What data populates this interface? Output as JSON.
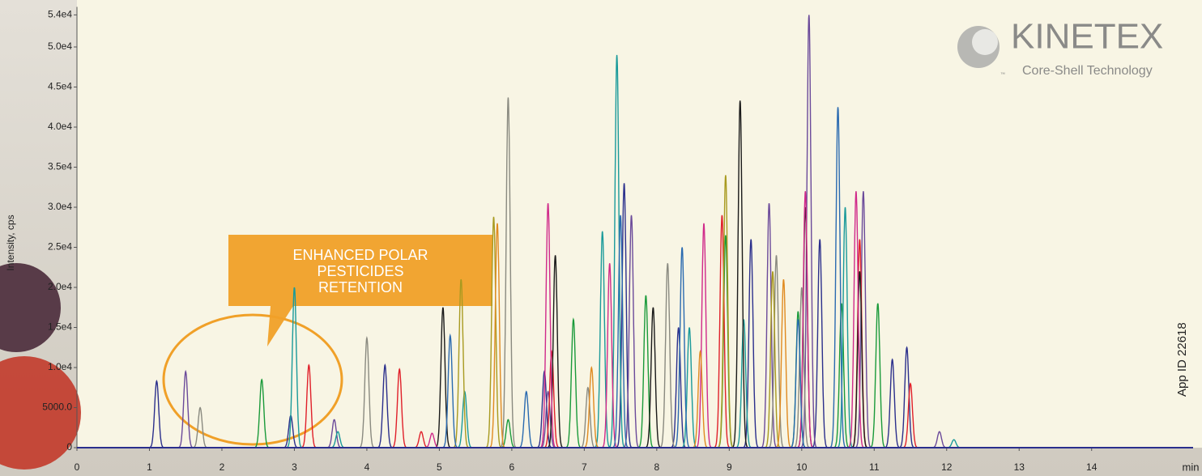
{
  "chart_data": {
    "type": "chromatogram",
    "y_label": "Intensity, cps",
    "x_label": "min",
    "annotation": [
      "ENHANCED POLAR",
      "PESTICIDES",
      "RETENTION"
    ],
    "logo": {
      "name": "KINETEX",
      "tm": "™",
      "tagline": "Core-Shell Technology"
    },
    "app_id": "App ID 22618",
    "xlim": [
      0,
      15.4
    ],
    "ylim": [
      0,
      55000
    ],
    "xticks": [
      0,
      1,
      2,
      3,
      4,
      5,
      6,
      7,
      8,
      9,
      10,
      11,
      12,
      13,
      14
    ],
    "yticks": [
      0,
      {
        "value": 5000,
        "label": "5000.0"
      },
      {
        "value": 10000,
        "label": "1.0e4"
      },
      {
        "value": 15000,
        "label": "1.5e4"
      },
      {
        "value": 20000,
        "label": "2.0e4"
      },
      {
        "value": 25000,
        "label": "2.5e4"
      },
      {
        "value": 30000,
        "label": "3.0e4"
      },
      {
        "value": 35000,
        "label": "3.5e4"
      },
      {
        "value": 40000,
        "label": "4.0e4"
      },
      {
        "value": 45000,
        "label": "4.5e4"
      },
      {
        "value": 50000,
        "label": "5.0e4"
      },
      {
        "value": 54000,
        "label": "5.4e4"
      }
    ],
    "series": [
      {
        "color": "#2b2f8c",
        "x": [
          1.1,
          2.95,
          4.25,
          6.45,
          7.55,
          8.3,
          9.3,
          10.25,
          11.25,
          11.45
        ],
        "values": [
          8300,
          4000,
          10300,
          9500,
          33000,
          15000,
          26000,
          26000,
          11000,
          12500
        ]
      },
      {
        "color": "#6b4a9a",
        "x": [
          1.5,
          3.55,
          6.5,
          7.65,
          9.55,
          10.1,
          10.85,
          11.9
        ],
        "values": [
          9500,
          3500,
          7000,
          29000,
          30500,
          54000,
          32000,
          2000
        ]
      },
      {
        "color": "#8a8a80",
        "x": [
          1.7,
          4.0,
          5.95,
          7.05,
          8.15,
          9.65,
          10.0
        ],
        "values": [
          5000,
          13700,
          43700,
          7500,
          23000,
          24000,
          20000
        ]
      },
      {
        "color": "#1a9a3a",
        "x": [
          2.55,
          5.95,
          6.85,
          7.85,
          8.95,
          9.95,
          10.55,
          11.05
        ],
        "values": [
          8500,
          3500,
          16000,
          19000,
          26500,
          17000,
          18000,
          18000
        ]
      },
      {
        "color": "#1a9a9a",
        "x": [
          3.0,
          3.6,
          5.35,
          7.25,
          7.45,
          8.45,
          9.2,
          10.6,
          12.1
        ],
        "values": [
          20000,
          2000,
          7000,
          27000,
          49000,
          15000,
          16000,
          30000,
          1000
        ]
      },
      {
        "color": "#e0202a",
        "x": [
          3.2,
          4.45,
          4.75,
          6.55,
          8.9,
          10.8,
          11.5
        ],
        "values": [
          10300,
          9800,
          2000,
          12000,
          29000,
          26000,
          8000
        ]
      },
      {
        "color": "#1a1a1a",
        "x": [
          5.05,
          6.6,
          7.95,
          9.15,
          10.05,
          10.8
        ],
        "values": [
          17500,
          24000,
          17500,
          43300,
          30000,
          22000
        ]
      },
      {
        "color": "#a89a20",
        "x": [
          5.3,
          5.75,
          8.95,
          9.6
        ],
        "values": [
          21000,
          28800,
          34000,
          22000
        ]
      },
      {
        "color": "#d02a8a",
        "x": [
          4.9,
          6.5,
          7.35,
          8.65,
          10.05,
          10.75
        ],
        "values": [
          1800,
          30500,
          23000,
          28000,
          32000,
          32000
        ]
      },
      {
        "color": "#e08a20",
        "x": [
          5.8,
          7.1,
          8.6,
          9.75
        ],
        "values": [
          28000,
          10000,
          12000,
          21000
        ]
      },
      {
        "color": "#2a6ab0",
        "x": [
          5.15,
          6.2,
          7.5,
          8.35,
          9.95,
          10.5
        ],
        "values": [
          14000,
          7000,
          29000,
          25000,
          16000,
          42500
        ]
      }
    ]
  }
}
